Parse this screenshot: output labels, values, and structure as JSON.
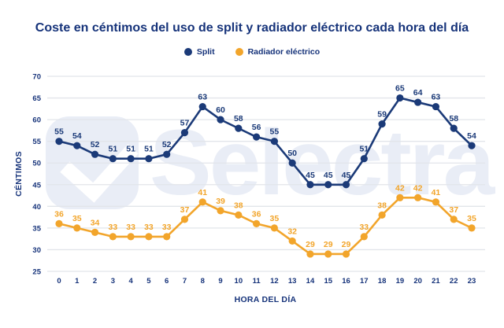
{
  "title": "Coste en céntimos del uso de split y radiador eléctrico cada hora del día",
  "watermark": {
    "text": "Selectra",
    "logo_icon": "selectra-check-logo"
  },
  "colors": {
    "navy": "#1b3a78",
    "orange": "#f2a52b",
    "grid": "#e2e5ea",
    "title_text": "#16337a",
    "watermark": "#e9edf6"
  },
  "legend": [
    {
      "label": "Split",
      "color": "#1b3a78"
    },
    {
      "label": "Radiador eléctrico",
      "color": "#f2a52b"
    }
  ],
  "chart_data": {
    "type": "line",
    "title": "Coste en céntimos del uso de split y radiador eléctrico cada hora del día",
    "xlabel": "HORA DEL DÍA",
    "ylabel": "CÉNTIMOS",
    "x": [
      0,
      1,
      2,
      3,
      4,
      5,
      6,
      7,
      8,
      9,
      10,
      11,
      12,
      13,
      14,
      15,
      16,
      17,
      18,
      19,
      20,
      21,
      22,
      23
    ],
    "ylim": [
      25,
      70
    ],
    "ytick_step": 5,
    "grid": true,
    "legend_position": "top",
    "series": [
      {
        "name": "Split",
        "color": "#1b3a78",
        "values": [
          55,
          54,
          52,
          51,
          51,
          51,
          52,
          57,
          63,
          60,
          58,
          56,
          55,
          50,
          45,
          45,
          45,
          51,
          59,
          65,
          64,
          63,
          58,
          54
        ]
      },
      {
        "name": "Radiador eléctrico",
        "color": "#f2a52b",
        "values": [
          36,
          35,
          34,
          33,
          33,
          33,
          33,
          37,
          41,
          39,
          38,
          36,
          35,
          32,
          29,
          29,
          29,
          33,
          38,
          42,
          42,
          41,
          37,
          35
        ]
      }
    ]
  }
}
